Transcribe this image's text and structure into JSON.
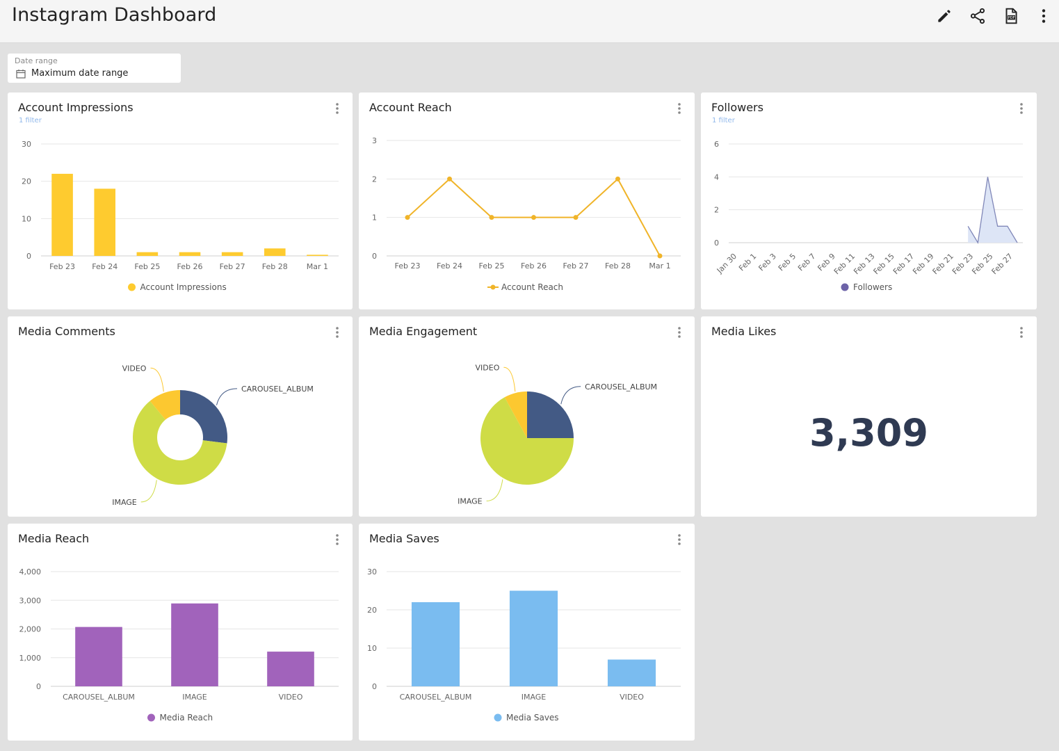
{
  "app": {
    "title": "Instagram Dashboard",
    "toolbar": [
      {
        "name": "edit",
        "icon": "pencil-icon"
      },
      {
        "name": "share",
        "icon": "share-icon"
      },
      {
        "name": "pdf",
        "icon": "pdf-icon"
      },
      {
        "name": "more",
        "icon": "more-vertical-icon"
      }
    ]
  },
  "date_range": {
    "label": "Date range",
    "value": "Maximum date range",
    "icon": "calendar-icon"
  },
  "cards": {
    "impressions": {
      "title": "Account Impressions",
      "filter": "1 filter"
    },
    "reach": {
      "title": "Account Reach"
    },
    "followers": {
      "title": "Followers",
      "filter": "1 filter"
    },
    "comments": {
      "title": "Media Comments"
    },
    "engagement": {
      "title": "Media Engagement"
    },
    "likes": {
      "title": "Media Likes",
      "value": "3,309"
    },
    "media_reach": {
      "title": "Media Reach"
    },
    "saves": {
      "title": "Media Saves"
    }
  },
  "chart_data": [
    {
      "id": "impressions",
      "type": "bar",
      "color": "#fecb2f",
      "categories": [
        "Feb 23",
        "Feb 24",
        "Feb 25",
        "Feb 26",
        "Feb 27",
        "Feb 28",
        "Mar 1"
      ],
      "series": [
        {
          "name": "Account Impressions",
          "values": [
            22,
            18,
            1,
            1,
            1,
            2,
            0.3
          ]
        }
      ],
      "ylim": [
        0,
        30
      ],
      "yticks": [
        0,
        10,
        20,
        30
      ],
      "ytick_labels": [
        "0",
        "10",
        "20",
        "30"
      ],
      "grid": true,
      "legend": "bottom-center"
    },
    {
      "id": "reach",
      "type": "line",
      "color": "#f0b429",
      "categories": [
        "Feb 23",
        "Feb 24",
        "Feb 25",
        "Feb 26",
        "Feb 27",
        "Feb 28",
        "Mar 1"
      ],
      "series": [
        {
          "name": "Account Reach",
          "values": [
            1,
            2,
            1,
            1,
            1,
            2,
            0
          ]
        }
      ],
      "ylim": [
        0,
        3
      ],
      "yticks": [
        0,
        1,
        2,
        3
      ],
      "ytick_labels": [
        "0",
        "1",
        "2",
        "3"
      ],
      "grid": true,
      "legend": "bottom-center"
    },
    {
      "id": "followers",
      "type": "area",
      "color": "#8087b8",
      "fill": "#dde5f6",
      "categories": [
        "Jan 30",
        "Feb 1",
        "Feb 3",
        "Feb 5",
        "Feb 7",
        "Feb 9",
        "Feb 11",
        "Feb 13",
        "Feb 15",
        "Feb 17",
        "Feb 19",
        "Feb 21",
        "Feb 23",
        "Feb 25",
        "Feb 27"
      ],
      "x": [
        "Feb 23",
        "Feb 24",
        "Feb 25",
        "Feb 26",
        "Feb 27",
        "Feb 28"
      ],
      "series": [
        {
          "name": "Followers",
          "values": [
            1,
            0,
            4,
            1,
            1,
            0
          ]
        }
      ],
      "ylim": [
        0,
        6
      ],
      "yticks": [
        0,
        2,
        4,
        6
      ],
      "ytick_labels": [
        "0",
        "2",
        "4",
        "6"
      ],
      "grid": true,
      "legend": "bottom-center",
      "legend_color": "#6d63a8"
    },
    {
      "id": "comments",
      "type": "pie",
      "donut": true,
      "slices": [
        {
          "label": "CAROUSEL_ALBUM",
          "value": 27,
          "color": "#435a85"
        },
        {
          "label": "IMAGE",
          "value": 62,
          "color": "#cfdc46"
        },
        {
          "label": "VIDEO",
          "value": 11,
          "color": "#fcc830"
        }
      ]
    },
    {
      "id": "engagement",
      "type": "pie",
      "donut": false,
      "slices": [
        {
          "label": "CAROUSEL_ALBUM",
          "value": 25,
          "color": "#435a85"
        },
        {
          "label": "IMAGE",
          "value": 67,
          "color": "#cfdc46"
        },
        {
          "label": "VIDEO",
          "value": 8,
          "color": "#fcc830"
        }
      ]
    },
    {
      "id": "media_reach",
      "type": "bar",
      "color": "#a163bb",
      "categories": [
        "CAROUSEL_ALBUM",
        "IMAGE",
        "VIDEO"
      ],
      "series": [
        {
          "name": "Media Reach",
          "values": [
            2070,
            2890,
            1210
          ]
        }
      ],
      "ylim": [
        0,
        4000
      ],
      "yticks": [
        0,
        1000,
        2000,
        3000,
        4000
      ],
      "ytick_labels": [
        "0",
        "1,000",
        "2,000",
        "3,000",
        "4,000"
      ],
      "grid": true,
      "legend": "bottom-center"
    },
    {
      "id": "saves",
      "type": "bar",
      "color": "#7abcf0",
      "categories": [
        "CAROUSEL_ALBUM",
        "IMAGE",
        "VIDEO"
      ],
      "series": [
        {
          "name": "Media Saves",
          "values": [
            22,
            25,
            7
          ]
        }
      ],
      "ylim": [
        0,
        30
      ],
      "yticks": [
        0,
        10,
        20,
        30
      ],
      "ytick_labels": [
        "0",
        "10",
        "20",
        "30"
      ],
      "grid": true,
      "legend": "bottom-center"
    }
  ]
}
